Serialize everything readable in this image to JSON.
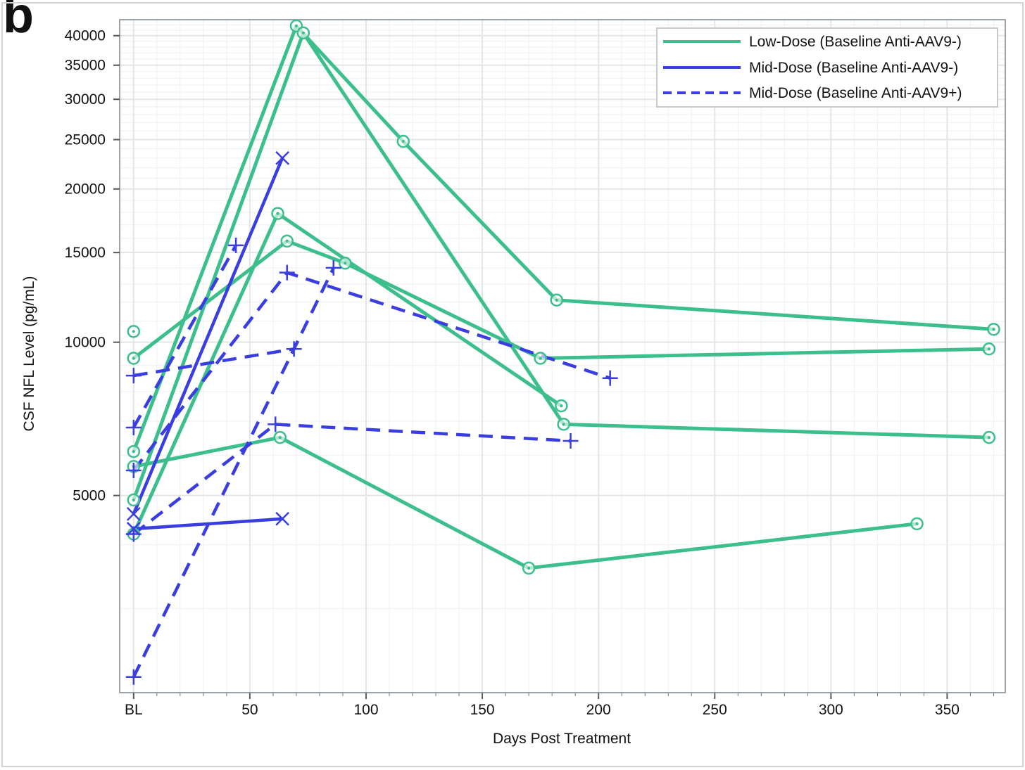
{
  "panel_label": "b",
  "colors": {
    "low": "#3cbf8c",
    "mid": "#3a3ee0",
    "grid": "#e3e6e8",
    "frame": "#9aa3a8"
  },
  "chart_data": {
    "type": "line",
    "title": "",
    "xlabel": "Days Post Treatment",
    "ylabel": "CSF NFL Level (pg/mL)",
    "x_scale": "linear",
    "y_scale": "log",
    "xlim": [
      -6,
      375
    ],
    "ylim": [
      2050,
      43000
    ],
    "x_ticks": [
      {
        "value": 0,
        "label": "BL"
      },
      {
        "value": 50,
        "label": "50"
      },
      {
        "value": 100,
        "label": "100"
      },
      {
        "value": 150,
        "label": "150"
      },
      {
        "value": 200,
        "label": "200"
      },
      {
        "value": 250,
        "label": "250"
      },
      {
        "value": 300,
        "label": "300"
      },
      {
        "value": 350,
        "label": "350"
      }
    ],
    "y_ticks": [
      {
        "value": 5000,
        "label": "5000"
      },
      {
        "value": 10000,
        "label": "10000"
      },
      {
        "value": 15000,
        "label": "15000"
      },
      {
        "value": 20000,
        "label": "20000"
      },
      {
        "value": 25000,
        "label": "25000"
      },
      {
        "value": 30000,
        "label": "30000"
      },
      {
        "value": 35000,
        "label": "35000"
      },
      {
        "value": 40000,
        "label": "40000"
      }
    ],
    "grid": true,
    "legend_position": "top-right",
    "legend": [
      {
        "label": "Low-Dose (Baseline Anti-AAV9-)",
        "color": "#3cbf8c",
        "dash": "solid"
      },
      {
        "label": "Mid-Dose (Baseline Anti-AAV9-)",
        "color": "#3a3ee0",
        "dash": "solid"
      },
      {
        "label": "Mid-Dose (Baseline Anti-AAV9+)",
        "color": "#3a3ee0",
        "dash": "dashed"
      }
    ],
    "series": [
      {
        "group": "low",
        "marker": "circle",
        "dash": "solid",
        "points": [
          [
            0,
            10500
          ]
        ]
      },
      {
        "group": "low",
        "marker": "circle",
        "dash": "solid",
        "points": [
          [
            0,
            9300
          ],
          [
            66,
            15800
          ],
          [
            91,
            14300
          ],
          [
            175,
            9300
          ],
          [
            368,
            9700
          ]
        ]
      },
      {
        "group": "low",
        "marker": "circle",
        "dash": "solid",
        "points": [
          [
            0,
            6100
          ],
          [
            70,
            41800
          ],
          [
            116,
            24800
          ],
          [
            182,
            12100
          ],
          [
            370,
            10600
          ]
        ]
      },
      {
        "group": "low",
        "marker": "circle",
        "dash": "solid",
        "points": [
          [
            0,
            4900
          ],
          [
            73,
            40500
          ],
          [
            185,
            6900
          ],
          [
            368,
            6500
          ]
        ]
      },
      {
        "group": "low",
        "marker": "circle",
        "dash": "solid",
        "points": [
          [
            0,
            4200
          ],
          [
            62,
            17900
          ],
          [
            184,
            7500
          ]
        ]
      },
      {
        "group": "low",
        "marker": "circle",
        "dash": "solid",
        "points": [
          [
            0,
            5700
          ],
          [
            63,
            6500
          ],
          [
            170,
            3600
          ],
          [
            337,
            4400
          ]
        ]
      },
      {
        "group": "mid_neg",
        "marker": "x",
        "dash": "solid",
        "points": [
          [
            0,
            4600
          ],
          [
            64,
            23000
          ]
        ]
      },
      {
        "group": "mid_neg",
        "marker": "x",
        "dash": "solid",
        "points": [
          [
            0,
            4300
          ],
          [
            64,
            4500
          ]
        ]
      },
      {
        "group": "mid_pos",
        "marker": "plus",
        "dash": "dashed",
        "points": [
          [
            0,
            6800
          ],
          [
            44,
            15500
          ]
        ]
      },
      {
        "group": "mid_pos",
        "marker": "plus",
        "dash": "dashed",
        "points": [
          [
            0,
            8600
          ],
          [
            69,
            9700
          ]
        ]
      },
      {
        "group": "mid_pos",
        "marker": "plus",
        "dash": "dashed",
        "points": [
          [
            0,
            5600
          ],
          [
            66,
            13700
          ],
          [
            205,
            8500
          ]
        ]
      },
      {
        "group": "mid_pos",
        "marker": "plus",
        "dash": "dashed",
        "points": [
          [
            0,
            4200
          ],
          [
            61,
            6900
          ],
          [
            188,
            6400
          ]
        ]
      },
      {
        "group": "mid_pos",
        "marker": "plus",
        "dash": "dashed",
        "points": [
          [
            0,
            2200
          ],
          [
            86,
            14000
          ]
        ]
      }
    ]
  }
}
